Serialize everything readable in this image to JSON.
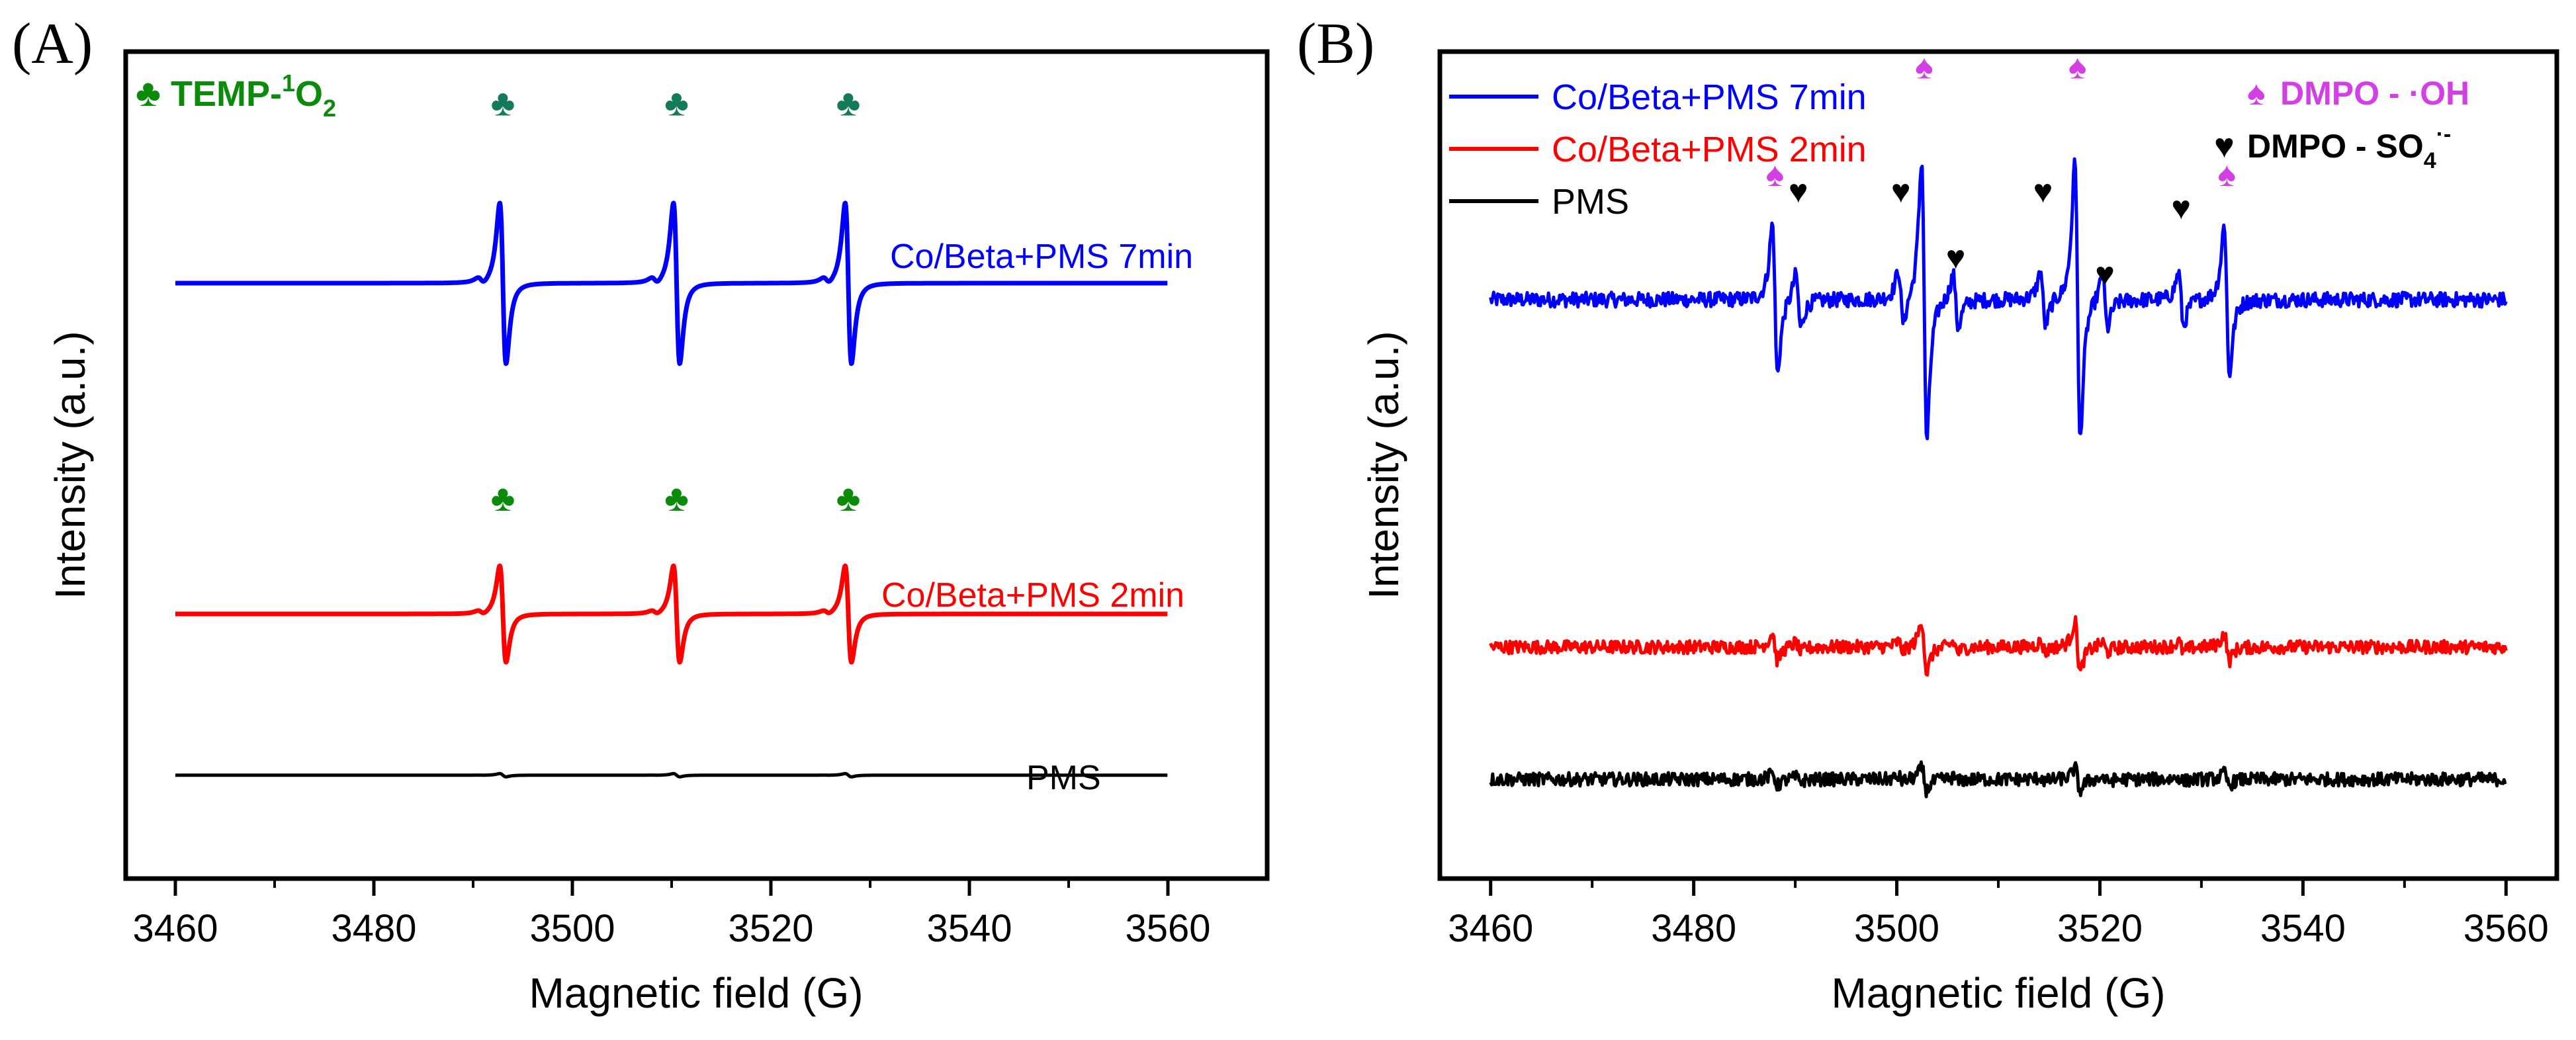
{
  "colors": {
    "blue": "#0000ff",
    "red": "#ff0000",
    "black": "#000000",
    "green": "#0a8c0a",
    "magenta": "#d33fe4"
  },
  "chart_data": [
    {
      "panel": "(A)",
      "type": "line",
      "xlabel": "Magnetic field (G)",
      "ylabel": "Intensity (a.u.)",
      "xlim": [
        3455,
        3570
      ],
      "xticks": [
        3460,
        3480,
        3500,
        3520,
        3540,
        3560
      ],
      "legend": {
        "symbol": "♣",
        "text": "TEMP-",
        "sup": "1",
        "tail": "O",
        "sub": "2"
      },
      "peak_symbol": "♣",
      "peaks": [
        3493,
        3510.5,
        3527.8
      ],
      "series": [
        {
          "name": "Co/Beta+PMS 7min",
          "color": "#0000ff",
          "baseline": 0.72,
          "amplitude": 0.3
        },
        {
          "name": "Co/Beta+PMS 2min",
          "color": "#ff0000",
          "baseline": 0.32,
          "amplitude": 0.18
        },
        {
          "name": "PMS",
          "color": "#000000",
          "baseline": 0.125,
          "amplitude": 0.006
        }
      ],
      "x_range": [
        3460,
        3560
      ]
    },
    {
      "panel": "(B)",
      "type": "line",
      "xlabel": "Magnetic field (G)",
      "ylabel": "Intensity (a.u.)",
      "xlim": [
        3455,
        3565
      ],
      "xticks": [
        3460,
        3480,
        3500,
        3520,
        3540,
        3560
      ],
      "legend": [
        {
          "name": "Co/Beta+PMS 7min",
          "color": "#0000ff"
        },
        {
          "name": "Co/Beta+PMS 2min",
          "color": "#ff0000"
        },
        {
          "name": "PMS",
          "color": "#000000"
        }
      ],
      "markers": [
        {
          "symbol": "♠",
          "label": "DMPO - ·OH",
          "color": "#d33fe4"
        },
        {
          "symbol": "♥",
          "label": "DMPO - SO",
          "sub": "4",
          "sup": "·-",
          "color": "#000000"
        }
      ],
      "oh_peaks": [
        3488,
        3502.7,
        3517.8,
        3532.5
      ],
      "so4_peaks": [
        3490.3,
        3500.4,
        3505.8,
        3514.4,
        3520.5,
        3528
      ],
      "series": [
        {
          "name": "Co/Beta+PMS 7min",
          "color": "#0000ff",
          "baseline": 0.7,
          "scale": 1.0
        },
        {
          "name": "Co/Beta+PMS 2min",
          "color": "#ff0000",
          "baseline": 0.28,
          "scale": 0.18
        },
        {
          "name": "PMS",
          "color": "#000000",
          "baseline": 0.12,
          "scale": 0.08
        }
      ],
      "x_range": [
        3460,
        3560
      ]
    }
  ]
}
